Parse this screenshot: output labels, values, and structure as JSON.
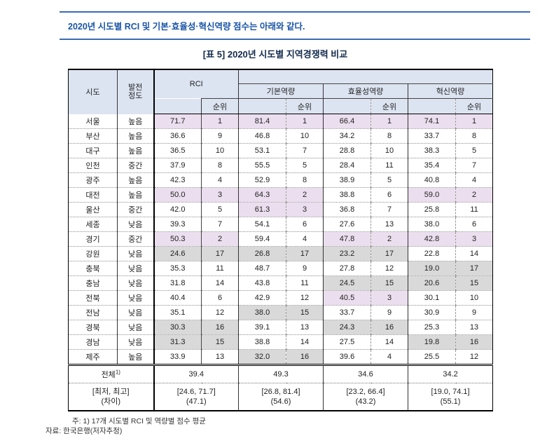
{
  "colors": {
    "accent_blue": "#1a55a8",
    "rule_blue": "#3a6cb4",
    "title_navy": "#122a4d",
    "header_bg": "#dce4f1",
    "highlight_top3": "#ebdeee",
    "highlight_bottom3": "#d9d9d9"
  },
  "page": {
    "intro_text": "2020년 시도별 RCI 및 기본·효율성·혁신역량 점수는 아래와 같다.",
    "table_title": "[표 5] 2020년 시도별 지역경쟁력 비교",
    "note": "주: 1) 17개 시도별 RCI 및 역량별 점수 평균",
    "source": "자료: 한국은행(저자추정)"
  },
  "table": {
    "col_headers": {
      "sido": "시도",
      "development_line1": "발전",
      "development_line2": "정도",
      "rci": "RCI",
      "basic": "기본역량",
      "efficiency": "효율성역량",
      "innovation": "혁신역량",
      "rank": "순위"
    },
    "highlight_rule": {
      "top_rank_max": 3,
      "bottom_rank_min": 15
    },
    "rows": [
      {
        "sido": "서울",
        "dev": "높음",
        "rci": "71.7",
        "rci_rank": 1,
        "basic": "81.4",
        "basic_rank": 1,
        "eff": "66.4",
        "eff_rank": 1,
        "inno": "74.1",
        "inno_rank": 1
      },
      {
        "sido": "부산",
        "dev": "높음",
        "rci": "36.6",
        "rci_rank": 9,
        "basic": "46.8",
        "basic_rank": 10,
        "eff": "34.2",
        "eff_rank": 8,
        "inno": "33.7",
        "inno_rank": 8
      },
      {
        "sido": "대구",
        "dev": "높음",
        "rci": "36.5",
        "rci_rank": 10,
        "basic": "53.1",
        "basic_rank": 7,
        "eff": "28.8",
        "eff_rank": 10,
        "inno": "38.3",
        "inno_rank": 5
      },
      {
        "sido": "인천",
        "dev": "중간",
        "rci": "37.9",
        "rci_rank": 8,
        "basic": "55.5",
        "basic_rank": 5,
        "eff": "28.4",
        "eff_rank": 11,
        "inno": "35.4",
        "inno_rank": 7
      },
      {
        "sido": "광주",
        "dev": "높음",
        "rci": "42.3",
        "rci_rank": 4,
        "basic": "52.9",
        "basic_rank": 8,
        "eff": "38.9",
        "eff_rank": 5,
        "inno": "40.8",
        "inno_rank": 4
      },
      {
        "sido": "대전",
        "dev": "높음",
        "rci": "50.0",
        "rci_rank": 3,
        "basic": "64.3",
        "basic_rank": 2,
        "eff": "38.8",
        "eff_rank": 6,
        "inno": "59.0",
        "inno_rank": 2
      },
      {
        "sido": "울산",
        "dev": "중간",
        "rci": "42.0",
        "rci_rank": 5,
        "basic": "61.3",
        "basic_rank": 3,
        "eff": "36.8",
        "eff_rank": 7,
        "inno": "25.8",
        "inno_rank": 11
      },
      {
        "sido": "세종",
        "dev": "낮음",
        "rci": "39.3",
        "rci_rank": 7,
        "basic": "54.1",
        "basic_rank": 6,
        "eff": "27.6",
        "eff_rank": 13,
        "inno": "38.0",
        "inno_rank": 6
      },
      {
        "sido": "경기",
        "dev": "중간",
        "rci": "50.3",
        "rci_rank": 2,
        "basic": "59.4",
        "basic_rank": 4,
        "eff": "47.8",
        "eff_rank": 2,
        "inno": "42.8",
        "inno_rank": 3
      },
      {
        "sido": "강원",
        "dev": "낮음",
        "rci": "24.6",
        "rci_rank": 17,
        "basic": "26.8",
        "basic_rank": 17,
        "eff": "23.2",
        "eff_rank": 17,
        "inno": "22.8",
        "inno_rank": 14
      },
      {
        "sido": "충북",
        "dev": "낮음",
        "rci": "35.3",
        "rci_rank": 11,
        "basic": "48.7",
        "basic_rank": 9,
        "eff": "27.8",
        "eff_rank": 12,
        "inno": "19.0",
        "inno_rank": 17
      },
      {
        "sido": "충남",
        "dev": "낮음",
        "rci": "31.8",
        "rci_rank": 14,
        "basic": "43.8",
        "basic_rank": 11,
        "eff": "24.5",
        "eff_rank": 15,
        "inno": "20.6",
        "inno_rank": 15
      },
      {
        "sido": "전북",
        "dev": "낮음",
        "rci": "40.4",
        "rci_rank": 6,
        "basic": "42.9",
        "basic_rank": 12,
        "eff": "40.5",
        "eff_rank": 3,
        "inno": "30.1",
        "inno_rank": 10
      },
      {
        "sido": "전남",
        "dev": "낮음",
        "rci": "35.1",
        "rci_rank": 12,
        "basic": "38.0",
        "basic_rank": 15,
        "eff": "33.7",
        "eff_rank": 9,
        "inno": "30.9",
        "inno_rank": 9
      },
      {
        "sido": "경북",
        "dev": "낮음",
        "rci": "30.3",
        "rci_rank": 16,
        "basic": "39.1",
        "basic_rank": 13,
        "eff": "24.3",
        "eff_rank": 16,
        "inno": "25.3",
        "inno_rank": 13
      },
      {
        "sido": "경남",
        "dev": "낮음",
        "rci": "31.3",
        "rci_rank": 15,
        "basic": "38.8",
        "basic_rank": 14,
        "eff": "27.5",
        "eff_rank": 14,
        "inno": "19.8",
        "inno_rank": 16
      },
      {
        "sido": "제주",
        "dev": "높음",
        "rci": "33.9",
        "rci_rank": 13,
        "basic": "32.0",
        "basic_rank": 16,
        "eff": "39.6",
        "eff_rank": 4,
        "inno": "25.5",
        "inno_rank": 12
      }
    ],
    "summary": {
      "overall_label": "전체",
      "overall_footnote_mark": "1)",
      "overall": [
        "39.4",
        "49.3",
        "34.6",
        "34.2"
      ],
      "range_label_line1": "[최저, 최고]",
      "range_label_line2": "(차이)",
      "ranges": [
        "[24.6, 71.7]",
        "[26.8, 81.4]",
        "[23.2, 66.4]",
        "[19.0, 74.1]"
      ],
      "diffs": [
        "(47.1)",
        "(54.6)",
        "(43.2)",
        "(55.1)"
      ]
    }
  }
}
